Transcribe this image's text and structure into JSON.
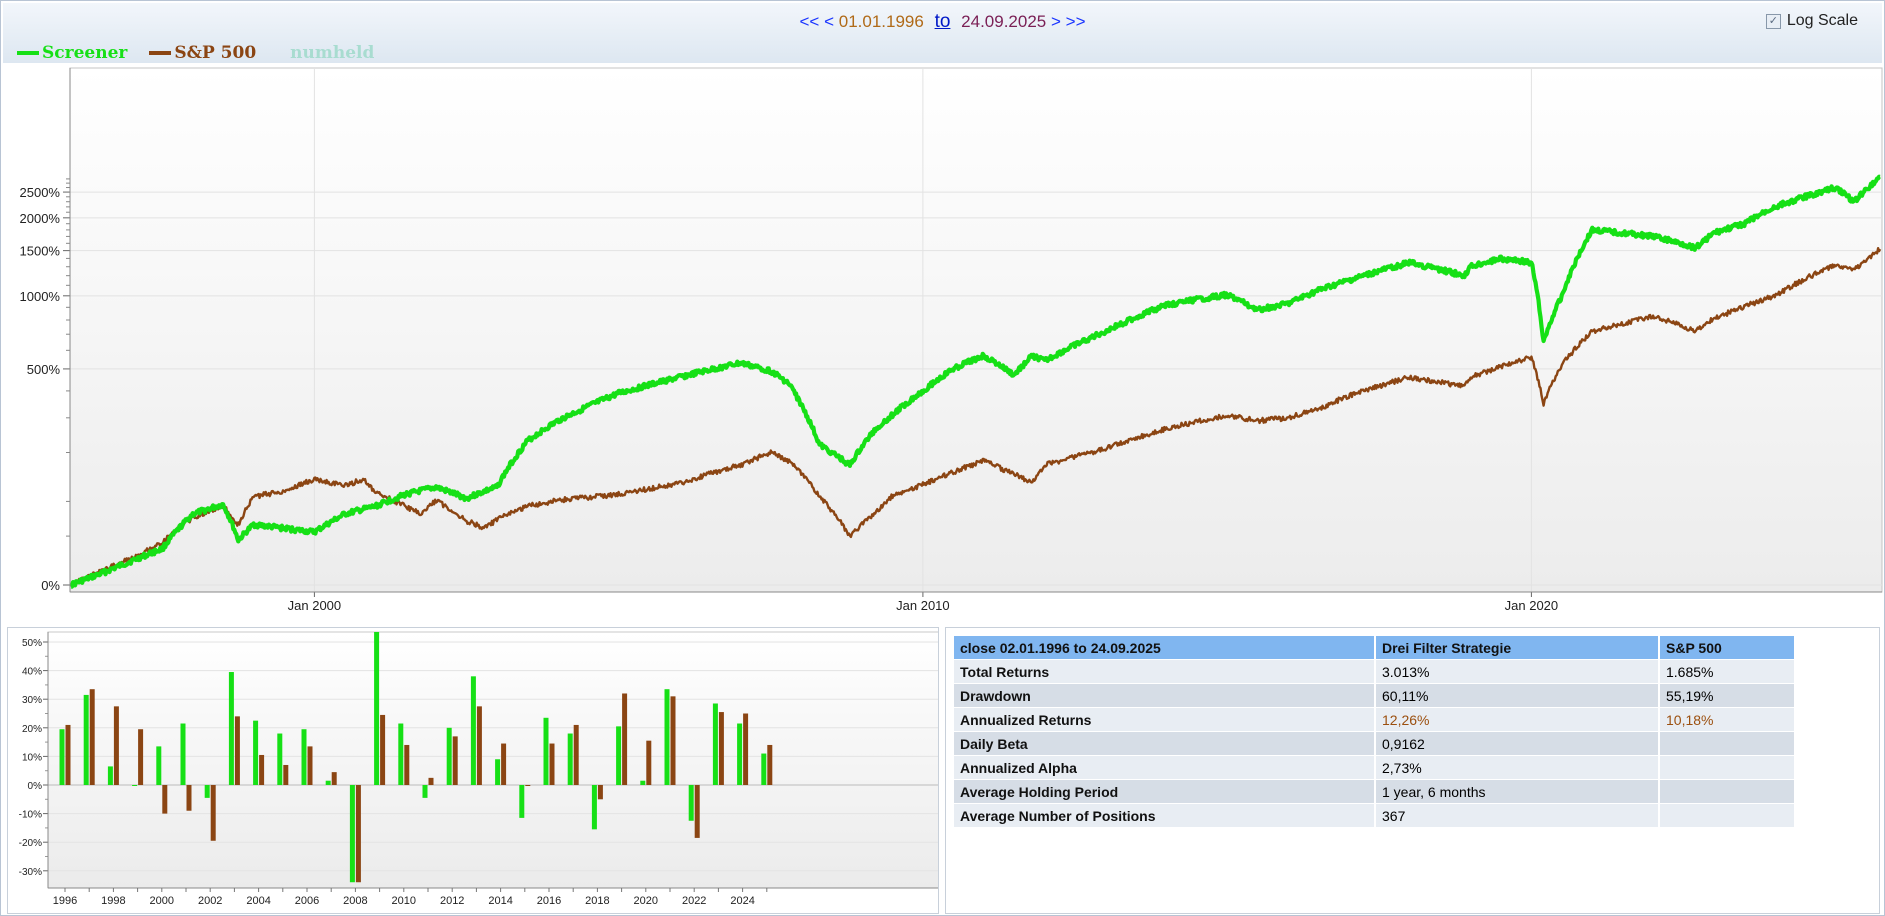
{
  "toolbar": {
    "nav_first": "<<",
    "nav_prev": "<",
    "date_from": "01.01.1996",
    "to_label": "to",
    "date_to": "24.09.2025",
    "nav_next": ">",
    "nav_last": ">>",
    "log_scale_label": "Log Scale",
    "log_scale_checked": true
  },
  "legend": {
    "items": [
      {
        "label": "Screener",
        "color": "#16e016"
      },
      {
        "label": "S&P 500",
        "color": "#8b4513"
      },
      {
        "label": "numheld",
        "color": "#a8dcd0"
      }
    ]
  },
  "colors": {
    "screener": "#16e016",
    "sp500": "#8b4513",
    "header_blue": "#80b6f0",
    "accent_orange": "#9b4f0e"
  },
  "chart_data": [
    {
      "type": "line",
      "y_scale": "log(1 + return)",
      "yticks": [
        "0%",
        "500%",
        "1000%",
        "1500%",
        "2000%",
        "2500%"
      ],
      "xticks": [
        "Jan 2000",
        "Jan 2010",
        "Jan 2020"
      ],
      "grid": true,
      "legend": "top-left",
      "series": [
        {
          "name": "Screener",
          "x": [
            1996.0,
            1996.5,
            1997.0,
            1997.5,
            1998.0,
            1998.5,
            1998.75,
            1999.0,
            1999.5,
            2000.0,
            2000.5,
            2001.0,
            2001.5,
            2002.0,
            2002.5,
            2002.8,
            2003.0,
            2003.5,
            2004.0,
            2005.0,
            2006.0,
            2007.0,
            2007.5,
            2007.8,
            2008.3,
            2008.8,
            2009.2,
            2009.5,
            2010.0,
            2010.5,
            2011.0,
            2011.5,
            2011.8,
            2012.0,
            2013.0,
            2014.0,
            2015.0,
            2015.5,
            2016.0,
            2016.5,
            2017.0,
            2018.0,
            2018.9,
            2019.0,
            2019.5,
            2020.0,
            2020.2,
            2020.5,
            2021.0,
            2022.0,
            2022.7,
            2023.0,
            2023.5,
            2024.0,
            2025.0,
            2025.3,
            2025.73
          ],
          "y": [
            0,
            10,
            22,
            35,
            80,
            95,
            45,
            65,
            60,
            55,
            80,
            92,
            112,
            125,
            105,
            118,
            125,
            230,
            290,
            390,
            460,
            530,
            490,
            430,
            220,
            170,
            260,
            310,
            400,
            500,
            570,
            470,
            570,
            540,
            720,
            920,
            1010,
            880,
            930,
            1050,
            1150,
            1350,
            1200,
            1300,
            1400,
            1350,
            650,
            1000,
            1800,
            1700,
            1540,
            1750,
            1900,
            2200,
            2600,
            2300,
            2850
          ]
        },
        {
          "name": "S&P 500",
          "x": [
            1996.0,
            1996.5,
            1997.0,
            1997.5,
            1998.0,
            1998.5,
            1998.75,
            1999.0,
            1999.5,
            2000.0,
            2000.5,
            2000.8,
            2001.0,
            2001.5,
            2001.75,
            2002.0,
            2002.5,
            2002.8,
            2003.0,
            2003.5,
            2004.0,
            2005.0,
            2006.0,
            2007.0,
            2007.5,
            2007.8,
            2008.3,
            2008.8,
            2009.2,
            2009.5,
            2010.0,
            2010.5,
            2011.0,
            2011.5,
            2011.8,
            2012.0,
            2013.0,
            2014.0,
            2015.0,
            2015.5,
            2016.0,
            2016.5,
            2017.0,
            2018.0,
            2018.9,
            2019.0,
            2020.0,
            2020.2,
            2020.5,
            2021.0,
            2022.0,
            2022.7,
            2023.0,
            2024.0,
            2025.0,
            2025.3,
            2025.73
          ],
          "y": [
            0,
            12,
            25,
            42,
            75,
            92,
            65,
            108,
            118,
            140,
            128,
            140,
            115,
            92,
            80,
            102,
            70,
            60,
            72,
            92,
            102,
            112,
            132,
            170,
            200,
            180,
            110,
            50,
            80,
            110,
            130,
            155,
            180,
            150,
            135,
            170,
            210,
            265,
            310,
            290,
            300,
            330,
            380,
            460,
            420,
            460,
            560,
            350,
            520,
            720,
            830,
            720,
            810,
            1000,
            1330,
            1260,
            1520
          ]
        }
      ]
    },
    {
      "type": "bar",
      "categories": [
        "1996",
        "1997",
        "1998",
        "1999",
        "2000",
        "2001",
        "2002",
        "2003",
        "2004",
        "2005",
        "2006",
        "2007",
        "2008",
        "2009",
        "2010",
        "2011",
        "2012",
        "2013",
        "2014",
        "2015",
        "2016",
        "2017",
        "2018",
        "2019",
        "2020",
        "2021",
        "2022",
        "2023",
        "2024",
        "2025"
      ],
      "xtick_labels": [
        "1996",
        "1998",
        "2000",
        "2002",
        "2004",
        "2006",
        "2008",
        "2010",
        "2012",
        "2014",
        "2016",
        "2018",
        "2020",
        "2022",
        "2024"
      ],
      "ytick_labels": [
        "-30%",
        "-20%",
        "-10%",
        "0%",
        "10%",
        "20%",
        "30%",
        "40%",
        "50%"
      ],
      "ylim": [
        -35,
        54
      ],
      "grid": true,
      "series": [
        {
          "name": "Screener",
          "values": [
            19.5,
            31.5,
            6.5,
            -0.3,
            13.5,
            21.5,
            -4.5,
            39.5,
            22.5,
            18,
            19.5,
            1.5,
            -34,
            53.5,
            21.5,
            -4.5,
            20,
            38,
            9,
            -11.5,
            23.5,
            18,
            -15.5,
            20.5,
            1.5,
            33.5,
            -12.5,
            28.5,
            21.5,
            11
          ]
        },
        {
          "name": "S&P 500",
          "values": [
            21,
            33.5,
            27.5,
            19.5,
            -10,
            -9,
            -19.5,
            24,
            10.5,
            7,
            13.5,
            4.5,
            -34,
            24.5,
            14,
            2.5,
            17,
            27.5,
            14.5,
            0,
            14.5,
            21,
            -5,
            32,
            15.5,
            31,
            -18.5,
            25.5,
            25,
            14
          ]
        }
      ]
    },
    {
      "type": "table",
      "columns": [
        "close 02.01.1996 to 24.09.2025",
        "Drei Filter Strategie",
        "S&P 500"
      ],
      "rows": [
        {
          "label": "Total Returns",
          "strategy": "3.013%",
          "sp500": "1.685%"
        },
        {
          "label": "Drawdown",
          "strategy": "60,11%",
          "sp500": "55,19%"
        },
        {
          "label": "Annualized Returns",
          "strategy": "12,26%",
          "sp500": "10,18%",
          "highlight": true
        },
        {
          "label": "Daily Beta",
          "strategy": "0,9162",
          "sp500": ""
        },
        {
          "label": "Annualized Alpha",
          "strategy": "2,73%",
          "sp500": ""
        },
        {
          "label": "Average Holding Period",
          "strategy": "1 year, 6 months",
          "sp500": ""
        },
        {
          "label": "Average Number of Positions",
          "strategy": "367",
          "sp500": ""
        }
      ]
    }
  ]
}
